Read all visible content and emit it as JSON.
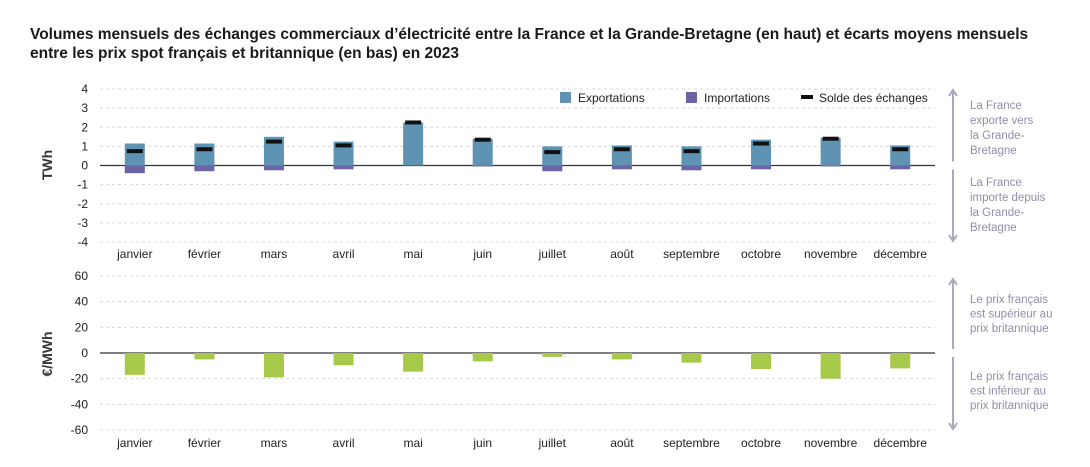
{
  "title": "Volumes mensuels des échanges commerciaux d’électricité entre la France et la Grande-Bretagne (en haut) et écarts moyens mensuels entre les prix spot français et britannique (en bas) en 2023",
  "colors": {
    "exports": "#5e93b4",
    "imports": "#6c62a6",
    "balance": "#111111",
    "price": "#a7c94a",
    "arrow": "#a8a8bc",
    "grid": "#d8d8d8"
  },
  "annotations": {
    "top_up": [
      "La France",
      "exporte vers",
      "la Grande-",
      "Bretagne"
    ],
    "top_down": [
      "La France",
      "importe depuis",
      "la Grande-",
      "Bretagne"
    ],
    "bottom_up": [
      "Le prix français",
      "est supérieur au",
      "prix britannique"
    ],
    "bottom_down": [
      "Le prix français",
      "est inférieur au",
      "prix britannique"
    ]
  },
  "chart_data": [
    {
      "type": "bar",
      "ylabel": "TWh",
      "ylim": [
        -4,
        4
      ],
      "yticks": [
        "4",
        "3",
        "2",
        "1",
        "0",
        "-1",
        "-2",
        "-3",
        "-4"
      ],
      "grid": true,
      "legend_position": "top-right",
      "categories": [
        "janvier",
        "février",
        "mars",
        "avril",
        "mai",
        "juin",
        "juillet",
        "août",
        "septembre",
        "octobre",
        "novembre",
        "décembre"
      ],
      "series": [
        {
          "name": "Exportations",
          "values": [
            1.15,
            1.15,
            1.5,
            1.25,
            2.25,
            1.4,
            1.0,
            1.05,
            1.0,
            1.35,
            1.45,
            1.05
          ]
        },
        {
          "name": "Importations",
          "values": [
            -0.4,
            -0.3,
            -0.25,
            -0.2,
            0,
            -0.05,
            -0.3,
            -0.2,
            -0.25,
            -0.2,
            -0.05,
            -0.2
          ]
        },
        {
          "name": "Solde des échanges",
          "values": [
            0.75,
            0.85,
            1.25,
            1.05,
            2.25,
            1.35,
            0.7,
            0.85,
            0.75,
            1.15,
            1.4,
            0.85
          ]
        }
      ]
    },
    {
      "type": "bar",
      "ylabel": "€/MWh",
      "ylim": [
        -60,
        60
      ],
      "yticks": [
        "60",
        "40",
        "20",
        "0",
        "-20",
        "-40",
        "-60"
      ],
      "grid": true,
      "categories": [
        "janvier",
        "février",
        "mars",
        "avril",
        "mai",
        "juin",
        "juillet",
        "août",
        "septembre",
        "octobre",
        "novembre",
        "décembre"
      ],
      "series": [
        {
          "values": [
            -17,
            -5,
            -19,
            -9.5,
            -14.5,
            -6.5,
            -3,
            -5,
            -7.5,
            -12.5,
            -20,
            -12
          ]
        }
      ]
    }
  ]
}
